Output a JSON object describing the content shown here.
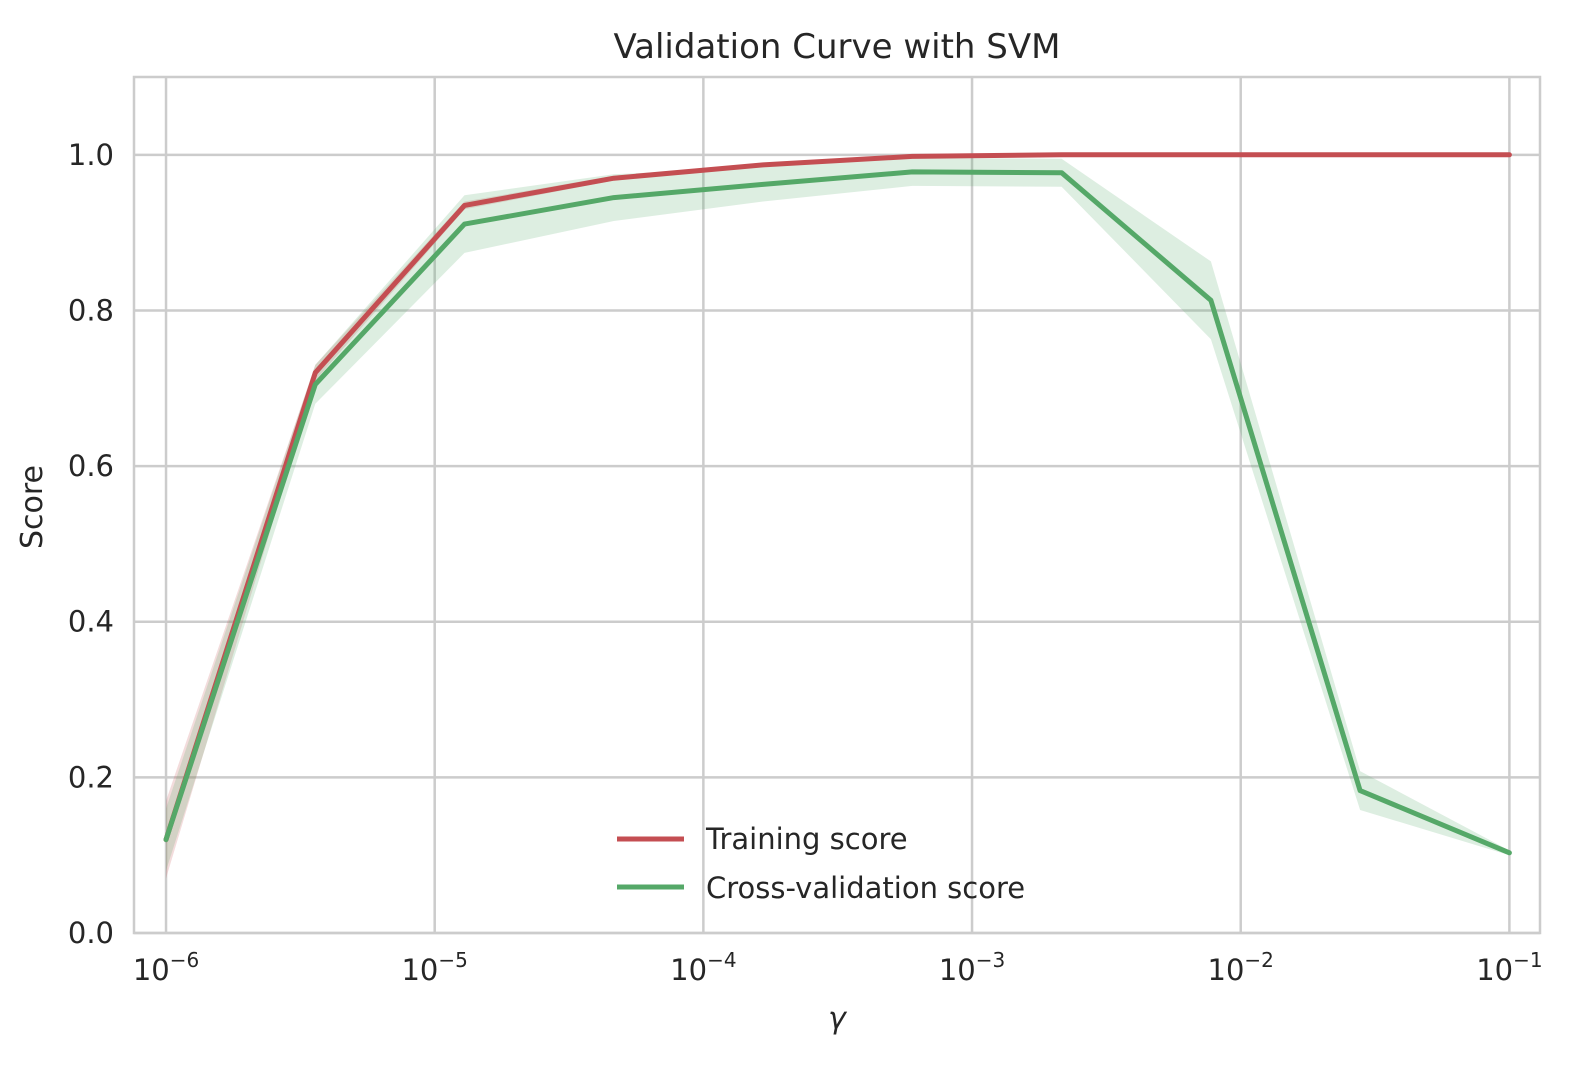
{
  "chart_data": {
    "type": "line",
    "title": "Validation Curve with SVM",
    "xlabel": "γ",
    "ylabel": "Score",
    "xscale": "log",
    "xlim": [
      7.6e-07,
      0.13
    ],
    "ylim": [
      0.0,
      1.1
    ],
    "grid": true,
    "legend_position": "bottom-center",
    "x": [
      1e-06,
      3.5938e-06,
      1.2915e-05,
      4.6416e-05,
      0.00016681,
      0.00059948,
      0.0021544,
      0.0077426,
      0.027826,
      0.1
    ],
    "x_ticks": [
      {
        "value": 1e-06,
        "base": "10",
        "exp": "−6"
      },
      {
        "value": 1e-05,
        "base": "10",
        "exp": "−5"
      },
      {
        "value": 0.0001,
        "base": "10",
        "exp": "−4"
      },
      {
        "value": 0.001,
        "base": "10",
        "exp": "−3"
      },
      {
        "value": 0.01,
        "base": "10",
        "exp": "−2"
      },
      {
        "value": 0.1,
        "base": "10",
        "exp": "−1"
      }
    ],
    "y_ticks": [
      {
        "value": 0.0,
        "label": "0.0"
      },
      {
        "value": 0.2,
        "label": "0.2"
      },
      {
        "value": 0.4,
        "label": "0.4"
      },
      {
        "value": 0.6,
        "label": "0.6"
      },
      {
        "value": 0.8,
        "label": "0.8"
      },
      {
        "value": 1.0,
        "label": "1.0"
      }
    ],
    "series": [
      {
        "name": "Training score",
        "color": "#c44e52",
        "values": [
          0.12,
          0.72,
          0.935,
          0.97,
          0.987,
          0.998,
          1.0,
          1.0,
          1.0,
          1.0
        ],
        "std": [
          0.05,
          0.01,
          0.005,
          0.003,
          0.002,
          0.001,
          0.0,
          0.0,
          0.0,
          0.0
        ]
      },
      {
        "name": "Cross-validation score",
        "color": "#55a868",
        "values": [
          0.12,
          0.705,
          0.911,
          0.945,
          0.962,
          0.978,
          0.977,
          0.813,
          0.183,
          0.103
        ],
        "std": [
          0.04,
          0.025,
          0.037,
          0.03,
          0.022,
          0.018,
          0.018,
          0.05,
          0.025,
          0.003
        ]
      }
    ]
  }
}
